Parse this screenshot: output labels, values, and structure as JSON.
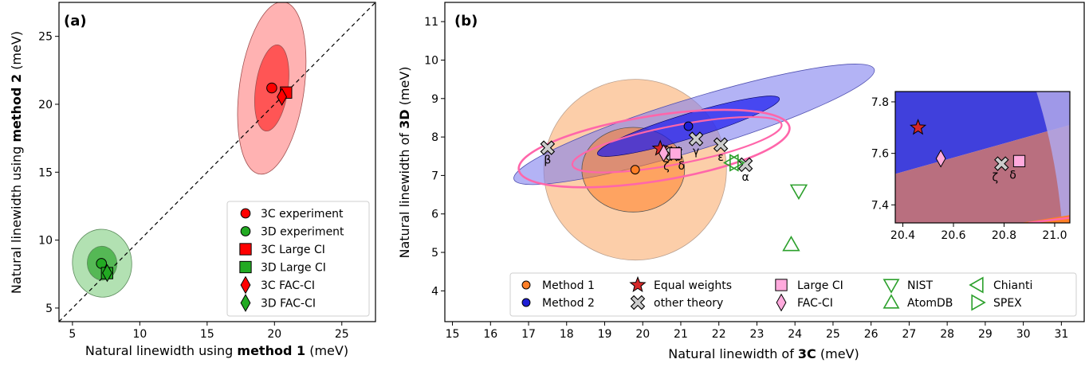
{
  "panel_a_tag": "(a)",
  "panel_b_tag": "(b)",
  "colors": {
    "c3": "#ff0000",
    "c3_dark": "#8b0000",
    "c3_light": "#ffaaaa",
    "d3": "#22aa22",
    "d3_dark": "#0b4f0b",
    "d3_light": "#aadeaa",
    "method1": "#ff7f27",
    "method1_light": "#fcc59a",
    "method2": "#1f1fd6",
    "method2_light": "#a6a6f0",
    "equal": "#d62728",
    "pink": "#ff66aa",
    "theory_grey": "#cccccc",
    "nist": "#2ca02c",
    "inset_bg_overlay": "#b96f7f"
  },
  "chart_data": [
    {
      "type": "scatter",
      "panel": "a",
      "xlabel_prefix": "Natural linewidth using ",
      "xlabel_bold": "method 1",
      "xlabel_suffix": " (meV)",
      "ylabel_prefix": "Natural linewidth using ",
      "ylabel_bold": "method 2",
      "ylabel_suffix": " (meV)",
      "xlim": [
        4,
        27.5
      ],
      "ylim": [
        4,
        27.5
      ],
      "xticks": [
        5,
        10,
        15,
        20,
        25
      ],
      "yticks": [
        5,
        10,
        15,
        20,
        25
      ],
      "diagonal": true,
      "ellipses": [
        {
          "name": "3C",
          "cx": 19.8,
          "cy": 21.2,
          "rx": 2.4,
          "ry": 6.4,
          "level": "2sigma"
        },
        {
          "name": "3C",
          "cx": 19.8,
          "cy": 21.2,
          "rx": 1.2,
          "ry": 3.2,
          "level": "1sigma"
        },
        {
          "name": "3D",
          "cx": 7.2,
          "cy": 8.3,
          "rx": 2.2,
          "ry": 2.5,
          "level": "2sigma"
        },
        {
          "name": "3D",
          "cx": 7.2,
          "cy": 8.3,
          "rx": 1.1,
          "ry": 1.25,
          "level": "1sigma"
        }
      ],
      "points": [
        {
          "series": "3C experiment",
          "x": 19.8,
          "y": 21.2,
          "marker": "circle"
        },
        {
          "series": "3D experiment",
          "x": 7.15,
          "y": 8.28,
          "marker": "circle"
        },
        {
          "series": "3C Large CI",
          "x": 20.86,
          "y": 20.86,
          "marker": "square"
        },
        {
          "series": "3D Large CI",
          "x": 7.57,
          "y": 7.57,
          "marker": "square"
        },
        {
          "series": "3C FAC-CI",
          "x": 20.55,
          "y": 20.55,
          "marker": "diamond"
        },
        {
          "series": "3D FAC-CI",
          "x": 7.58,
          "y": 7.58,
          "marker": "diamond"
        }
      ],
      "legend": [
        {
          "label": "3C experiment",
          "marker": "circle",
          "color": "#ff0000"
        },
        {
          "label": "3D experiment",
          "marker": "circle",
          "color": "#22aa22"
        },
        {
          "label": "3C Large CI",
          "marker": "square",
          "color": "#ff0000"
        },
        {
          "label": "3D Large CI",
          "marker": "square",
          "color": "#22aa22"
        },
        {
          "label": "3C FAC-CI",
          "marker": "diamond",
          "color": "#ff0000"
        },
        {
          "label": "3D FAC-CI",
          "marker": "diamond",
          "color": "#22aa22"
        }
      ],
      "legend_position": "lower-right"
    },
    {
      "type": "scatter",
      "panel": "b",
      "xlabel_prefix": "Natural linewidth of ",
      "xlabel_bold": "3C",
      "xlabel_suffix": " (meV)",
      "ylabel_prefix": "Natural linewidth of ",
      "ylabel_bold": "3D",
      "ylabel_suffix": " (meV)",
      "xlim": [
        14.8,
        31.6
      ],
      "ylim": [
        3.2,
        11.5
      ],
      "xticks": [
        15,
        16,
        17,
        18,
        19,
        20,
        21,
        22,
        23,
        24,
        25,
        26,
        27,
        28,
        29,
        30,
        31
      ],
      "yticks": [
        4,
        5,
        6,
        7,
        8,
        9,
        10,
        11
      ],
      "points": [
        {
          "series": "Method 1",
          "x": 19.8,
          "y": 7.15
        },
        {
          "series": "Method 2",
          "x": 21.2,
          "y": 8.28
        },
        {
          "series": "Equal weights",
          "x": 20.46,
          "y": 7.7
        },
        {
          "series": "Large CI",
          "x": 20.86,
          "y": 7.57
        },
        {
          "series": "FAC-CI",
          "x": 20.55,
          "y": 7.58
        },
        {
          "series": "NIST",
          "x": 24.1,
          "y": 6.6
        },
        {
          "series": "AtomDB",
          "x": 23.9,
          "y": 5.2
        },
        {
          "series": "Chianti",
          "x": 22.35,
          "y": 7.33
        },
        {
          "series": "SPEX",
          "x": 22.45,
          "y": 7.33
        }
      ],
      "other_theory": [
        {
          "label": "α",
          "x": 22.7,
          "y": 7.28
        },
        {
          "label": "β",
          "x": 17.5,
          "y": 7.72
        },
        {
          "label": "γ",
          "x": 21.4,
          "y": 7.95
        },
        {
          "label": "δ",
          "x": 20.85,
          "y": 7.57
        },
        {
          "label": "ε",
          "x": 22.05,
          "y": 7.8
        },
        {
          "label": "ζ",
          "x": 20.79,
          "y": 7.56
        }
      ],
      "legend": [
        {
          "label": "Method 1",
          "marker": "circle",
          "color": "#ff7f27"
        },
        {
          "label": "Method 2",
          "marker": "circle",
          "color": "#1f1fd6"
        },
        {
          "label": "Equal weights",
          "marker": "star",
          "color": "#d62728"
        },
        {
          "label": "other theory",
          "marker": "x-cross",
          "color": "#cccccc"
        },
        {
          "label": "Large CI",
          "marker": "square",
          "color": "#ffaadd"
        },
        {
          "label": "FAC-CI",
          "marker": "diamond",
          "color": "#ffaadd"
        },
        {
          "label": "NIST",
          "marker": "triangle-down",
          "color": "#2ca02c"
        },
        {
          "label": "AtomDB",
          "marker": "triangle-up",
          "color": "#2ca02c"
        },
        {
          "label": "Chianti",
          "marker": "triangle-left",
          "color": "#2ca02c"
        },
        {
          "label": "SPEX",
          "marker": "triangle-right",
          "color": "#2ca02c"
        }
      ],
      "legend_position": "bottom",
      "inset": {
        "xlim": [
          20.37,
          21.06
        ],
        "ylim": [
          7.33,
          7.84
        ],
        "xticks": [
          20.4,
          20.6,
          20.8,
          21.0
        ],
        "yticks": [
          7.4,
          7.6,
          7.8
        ],
        "xtick_labels": [
          "20.4",
          "20.6",
          "20.8",
          "21.0"
        ],
        "ytick_labels": [
          "7.4",
          "7.6",
          "7.8"
        ],
        "labels": [
          {
            "label": "ζ"
          },
          {
            "label": "δ"
          }
        ]
      }
    }
  ]
}
